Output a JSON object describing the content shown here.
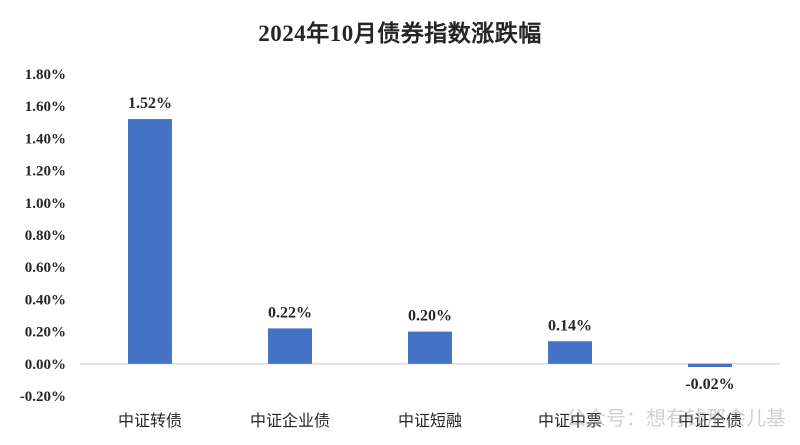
{
  "chart_data": {
    "type": "bar",
    "title": "2024年10月债券指数涨跌幅",
    "categories": [
      "中证转债",
      "中证企业债",
      "中证短融",
      "中证中票",
      "中证全债"
    ],
    "values": [
      1.52,
      0.22,
      0.2,
      0.14,
      -0.02
    ],
    "data_labels": [
      "1.52%",
      "0.22%",
      "0.20%",
      "0.14%",
      "-0.02%"
    ],
    "ylim": [
      -0.2,
      1.8
    ],
    "yticks": [
      -0.2,
      0.0,
      0.2,
      0.4,
      0.6,
      0.8,
      1.0,
      1.2,
      1.4,
      1.6,
      1.8
    ],
    "ytick_labels": [
      "-0.20%",
      "0.00%",
      "0.20%",
      "0.40%",
      "0.60%",
      "0.80%",
      "1.00%",
      "1.20%",
      "1.40%",
      "1.60%",
      "1.80%"
    ],
    "xlabel": "",
    "ylabel": "",
    "grid": false,
    "legend": "none",
    "bar_color": "#4472C4",
    "axis_color": "#D9D9D9"
  },
  "watermark": "公众号：想有钱那会儿基"
}
